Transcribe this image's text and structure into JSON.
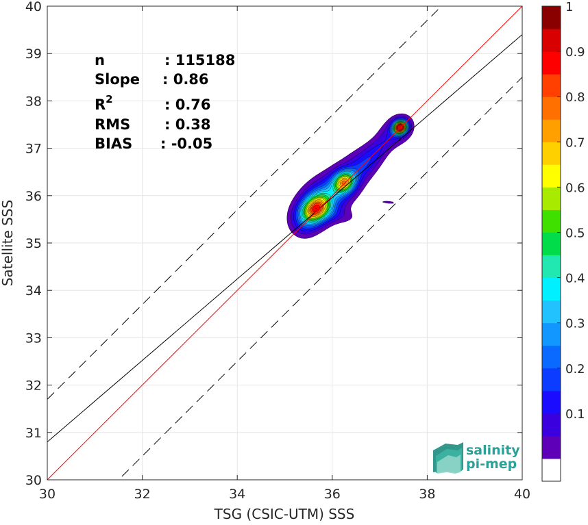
{
  "chart_data": {
    "type": "heatmap",
    "xlabel": "TSG (CSIC-UTM) SSS",
    "ylabel": "Satellite SSS",
    "xlim": [
      30,
      40
    ],
    "ylim": [
      30,
      40
    ],
    "xticks": [
      30,
      32,
      34,
      36,
      38,
      40
    ],
    "yticks": [
      30,
      31,
      32,
      33,
      34,
      35,
      36,
      37,
      38,
      39,
      40
    ],
    "grid": true,
    "stats": {
      "n_label": "n",
      "n_value": ": 115188",
      "slope_label": "Slope",
      "slope_value": ": 0.86",
      "r2_label": "R",
      "r2_sup": "2",
      "r2_value": ": 0.76",
      "rms_label": "RMS",
      "rms_value": ": 0.38",
      "bias_label": "BIAS",
      "bias_value": ": -0.05"
    },
    "lines": {
      "identity": {
        "slope": 1,
        "intercept": 0,
        "color": "#ff0000"
      },
      "fit": {
        "slope": 0.86,
        "intercept": 5.0,
        "color": "#000000"
      },
      "upper_bound": {
        "slope": 1,
        "intercept": 1.7,
        "style": "dashed"
      },
      "lower_bound": {
        "slope": 1,
        "intercept": -1.5,
        "style": "dashed"
      }
    },
    "density_peaks": [
      {
        "x": 35.65,
        "y": 35.72,
        "sx": 0.22,
        "sy": 0.18,
        "rot": 45,
        "amp": 0.68
      },
      {
        "x": 35.85,
        "y": 35.95,
        "sx": 0.38,
        "sy": 0.26,
        "rot": 40,
        "amp": 0.28
      },
      {
        "x": 36.25,
        "y": 36.28,
        "sx": 0.16,
        "sy": 0.14,
        "rot": 45,
        "amp": 0.58
      },
      {
        "x": 36.45,
        "y": 36.5,
        "sx": 0.45,
        "sy": 0.22,
        "rot": 45,
        "amp": 0.15
      },
      {
        "x": 36.9,
        "y": 36.9,
        "sx": 0.42,
        "sy": 0.14,
        "rot": 50,
        "amp": 0.12
      },
      {
        "x": 37.43,
        "y": 37.44,
        "sx": 0.1,
        "sy": 0.09,
        "rot": 40,
        "amp": 0.97
      },
      {
        "x": 37.38,
        "y": 37.38,
        "sx": 0.25,
        "sy": 0.2,
        "rot": 40,
        "amp": 0.12
      },
      {
        "x": 35.4,
        "y": 35.45,
        "sx": 0.2,
        "sy": 0.22,
        "rot": 0,
        "amp": 0.14
      },
      {
        "x": 36.05,
        "y": 35.6,
        "sx": 0.35,
        "sy": 0.12,
        "rot": -10,
        "amp": 0.07
      },
      {
        "x": 37.18,
        "y": 35.86,
        "sx": 0.15,
        "sy": 0.025,
        "rot": -5,
        "amp": 0.07
      }
    ],
    "colorbar": {
      "levels": [
        0.05,
        0.1,
        0.15,
        0.2,
        0.25,
        0.3,
        0.35,
        0.4,
        0.45,
        0.5,
        0.55,
        0.6,
        0.65,
        0.7,
        0.75,
        0.8,
        0.85,
        0.9,
        0.95,
        1.0
      ],
      "colors": [
        "#ffffff",
        "#5e00b8",
        "#3a00dd",
        "#1a0cff",
        "#0c3cff",
        "#0a6aff",
        "#1296ff",
        "#22c2ff",
        "#00f0ff",
        "#20e8b0",
        "#00dc4a",
        "#3fe000",
        "#a8ea00",
        "#ffff00",
        "#ffd000",
        "#ffa000",
        "#ff7000",
        "#ff4000",
        "#ff0000",
        "#d80000",
        "#8a0000"
      ],
      "ticks": [
        0.1,
        0.2,
        0.3,
        0.4,
        0.5,
        0.6,
        0.7,
        0.8,
        0.9,
        1
      ],
      "tick_labels": [
        "0.1",
        "0.2",
        "0.3",
        "0.4",
        "0.5",
        "0.6",
        "0.7",
        "0.8",
        "0.9",
        "1"
      ]
    }
  },
  "logo": {
    "line1": "salinity",
    "line2": "pi-mep",
    "color": "#2aa198"
  }
}
